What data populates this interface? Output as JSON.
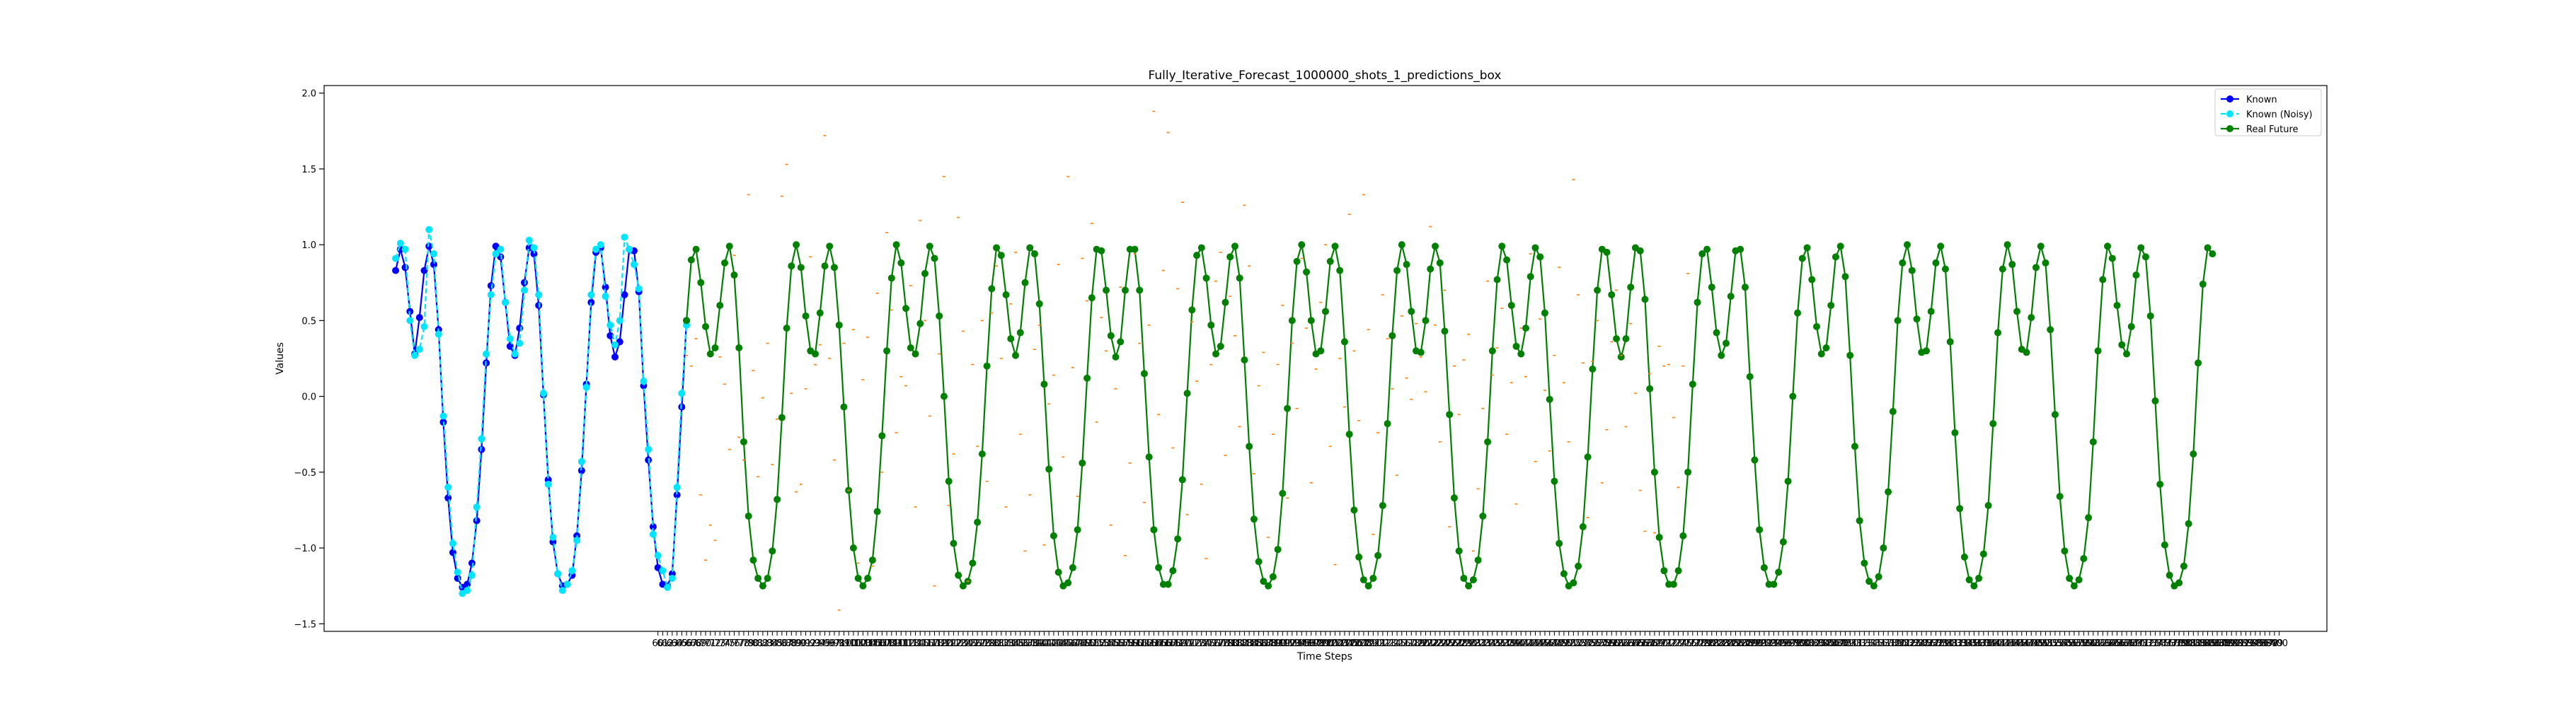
{
  "chart_data": {
    "type": "line",
    "title": "Fully_Iterative_Forecast_1000000_shots_1_predictions_box",
    "xlabel": "Time Steps",
    "ylabel": "Values",
    "xlim": [
      -10,
      410
    ],
    "ylim": [
      -1.55,
      2.05
    ],
    "yticks": [
      -1.5,
      -1.0,
      -0.5,
      0.0,
      0.5,
      1.0,
      1.5,
      2.0
    ],
    "ytick_labels": [
      "−1.5",
      "−1.0",
      "−0.5",
      "0.0",
      "0.5",
      "1.0",
      "1.5",
      "2.0"
    ],
    "x_tick_start": 60,
    "x_tick_end": 400,
    "legend_position": "top-right",
    "grid": false,
    "series": [
      {
        "name": "Known",
        "color": "#0000ff",
        "marker": "circle",
        "x_start": 5,
        "values": [
          0.83,
          0.97,
          0.85,
          0.56,
          0.28,
          0.52,
          0.83,
          0.99,
          0.87,
          0.44,
          -0.17,
          -0.67,
          -1.03,
          -1.2,
          -1.26,
          -1.24,
          -1.1,
          -0.82,
          -0.35,
          0.22,
          0.73,
          0.99,
          0.92,
          0.62,
          0.33,
          0.27,
          0.45,
          0.75,
          0.98,
          0.94,
          0.6,
          0.01,
          -0.55,
          -0.96,
          -1.17,
          -1.25,
          -1.24,
          -1.18,
          -0.92,
          -0.49,
          0.08,
          0.62,
          0.95,
          0.98,
          0.72,
          0.4,
          0.26,
          0.36,
          0.67,
          0.97,
          0.96,
          0.69,
          0.07,
          -0.42,
          -0.86,
          -1.13,
          -1.24,
          -1.25,
          -1.17,
          -0.65,
          -0.07,
          0.5
        ]
      },
      {
        "name": "Known (Noisy)",
        "color": "#00e5ff",
        "marker": "circle",
        "x_start": 5,
        "values": [
          0.91,
          1.01,
          0.97,
          0.5,
          0.27,
          0.31,
          0.46,
          1.1,
          0.94,
          0.41,
          -0.13,
          -0.6,
          -0.97,
          -1.16,
          -1.3,
          -1.28,
          -1.18,
          -0.73,
          -0.28,
          0.28,
          0.67,
          0.94,
          0.97,
          0.62,
          0.38,
          0.28,
          0.35,
          0.7,
          1.03,
          0.98,
          0.67,
          0.02,
          -0.58,
          -0.93,
          -1.17,
          -1.28,
          -1.24,
          -1.15,
          -0.95,
          -0.43,
          0.06,
          0.67,
          0.97,
          1.0,
          0.66,
          0.47,
          0.34,
          0.5,
          1.05,
          0.97,
          0.87,
          0.71,
          0.1,
          -0.35,
          -0.91,
          -1.05,
          -1.15,
          -1.26,
          -1.2,
          -0.6,
          0.02,
          0.47
        ]
      },
      {
        "name": "Real Future",
        "color": "#008000",
        "marker": "circle",
        "x_start": 66,
        "values": [
          0.5,
          0.9,
          0.97,
          0.75,
          0.46,
          0.28,
          0.32,
          0.6,
          0.88,
          0.99,
          0.8,
          0.32,
          -0.3,
          -0.79,
          -1.08,
          -1.2,
          -1.25,
          -1.2,
          -1.02,
          -0.68,
          -0.14,
          0.45,
          0.86,
          1.0,
          0.85,
          0.53,
          0.3,
          0.28,
          0.55,
          0.86,
          0.99,
          0.85,
          0.47,
          -0.07,
          -0.62,
          -1.0,
          -1.2,
          -1.25,
          -1.2,
          -1.08,
          -0.76,
          -0.26,
          0.3,
          0.78,
          1.0,
          0.88,
          0.58,
          0.32,
          0.28,
          0.48,
          0.81,
          0.99,
          0.91,
          0.53,
          0.0,
          -0.56,
          -0.97,
          -1.18,
          -1.25,
          -1.22,
          -1.1,
          -0.83,
          -0.38,
          0.2,
          0.71,
          0.98,
          0.93,
          0.67,
          0.38,
          0.27,
          0.42,
          0.75,
          0.98,
          0.94,
          0.61,
          0.08,
          -0.48,
          -0.92,
          -1.16,
          -1.25,
          -1.23,
          -1.13,
          -0.88,
          -0.44,
          0.12,
          0.65,
          0.97,
          0.96,
          0.7,
          0.4,
          0.26,
          0.36,
          0.7,
          0.97,
          0.97,
          0.7,
          0.15,
          -0.4,
          -0.88,
          -1.13,
          -1.24,
          -1.24,
          -1.15,
          -0.94,
          -0.55,
          0.02,
          0.57,
          0.93,
          0.98,
          0.78,
          0.47,
          0.28,
          0.33,
          0.62,
          0.92,
          0.99,
          0.78,
          0.24,
          -0.33,
          -0.81,
          -1.09,
          -1.22,
          -1.25,
          -1.19,
          -1.01,
          -0.64,
          -0.08,
          0.5,
          0.89,
          1.0,
          0.82,
          0.5,
          0.28,
          0.3,
          0.56,
          0.89,
          0.99,
          0.83,
          0.36,
          -0.25,
          -0.75,
          -1.06,
          -1.21,
          -1.25,
          -1.2,
          -1.05,
          -0.72,
          -0.18,
          0.4,
          0.83,
          1.0,
          0.87,
          0.56,
          0.3,
          0.29,
          0.5,
          0.84,
          0.99,
          0.88,
          0.43,
          -0.12,
          -0.67,
          -1.02,
          -1.2,
          -1.25,
          -1.21,
          -1.08,
          -0.79,
          -0.3,
          0.3,
          0.77,
          0.99,
          0.9,
          0.6,
          0.33,
          0.28,
          0.45,
          0.79,
          0.98,
          0.92,
          0.55,
          -0.02,
          -0.56,
          -0.97,
          -1.17,
          -1.25,
          -1.23,
          -1.12,
          -0.86,
          -0.4,
          0.18,
          0.7,
          0.97,
          0.95,
          0.67,
          0.38,
          0.26,
          0.38,
          0.72,
          0.98,
          0.96,
          0.64,
          0.05,
          -0.5,
          -0.93,
          -1.15,
          -1.24,
          -1.24,
          -1.15,
          -0.92,
          -0.5,
          0.08,
          0.62,
          0.94,
          0.97,
          0.72,
          0.42,
          0.27,
          0.35,
          0.66,
          0.96,
          0.97,
          0.72,
          0.13,
          -0.42,
          -0.88,
          -1.13,
          -1.24,
          -1.24,
          -1.16,
          -0.96,
          -0.56,
          0.0,
          0.55,
          0.91,
          0.98,
          0.77,
          0.46,
          0.28,
          0.32,
          0.6,
          0.92,
          0.99,
          0.79,
          0.27,
          -0.33,
          -0.82,
          -1.1,
          -1.22,
          -1.25,
          -1.19,
          -1.0,
          -0.63,
          -0.1,
          0.5,
          0.88,
          1.0,
          0.83,
          0.51,
          0.29,
          0.3,
          0.56,
          0.88,
          0.99,
          0.84,
          0.36,
          -0.24,
          -0.74,
          -1.06,
          -1.21,
          -1.25,
          -1.2,
          -1.04,
          -0.72,
          -0.18,
          0.42,
          0.84,
          1.0,
          0.87,
          0.56,
          0.31,
          0.29,
          0.52,
          0.85,
          0.99,
          0.88,
          0.44,
          -0.12,
          -0.66,
          -1.02,
          -1.2,
          -1.25,
          -1.21,
          -1.07,
          -0.8,
          -0.3,
          0.3,
          0.77,
          0.99,
          0.91,
          0.6,
          0.34,
          0.28,
          0.46,
          0.8,
          0.98,
          0.92,
          0.53,
          -0.03,
          -0.58,
          -0.98,
          -1.18,
          -1.25,
          -1.23,
          -1.12,
          -0.84,
          -0.38,
          0.22,
          0.74,
          0.98,
          0.94
        ]
      },
      {
        "name": "",
        "color": "#ff7f0e",
        "marker": "dash",
        "x_start": 66,
        "type": "scatter",
        "values": [
          0.27,
          0.2,
          0.38,
          -0.65,
          -1.08,
          -0.85,
          -0.95,
          0.26,
          0.08,
          -0.35,
          0.93,
          -0.27,
          -0.42,
          1.33,
          0.17,
          -0.53,
          -0.01,
          0.35,
          -0.45,
          -0.15,
          1.32,
          1.53,
          0.02,
          -0.63,
          -0.58,
          0.05,
          0.92,
          0.21,
          0.34,
          1.72,
          0.25,
          -0.42,
          -1.41,
          0.35,
          -0.62,
          0.44,
          -1.1,
          0.11,
          0.39,
          -1.12,
          0.68,
          -0.5,
          1.08,
          0.57,
          -0.24,
          0.13,
          0.07,
          0.73,
          -0.73,
          1.16,
          0.5,
          -0.13,
          -1.25,
          0.28,
          1.45,
          -0.72,
          -0.38,
          1.18,
          0.43,
          -1.22,
          0.21,
          -0.33,
          0.5,
          -0.56,
          0.55,
          0.86,
          0.25,
          -0.73,
          0.61,
          0.95,
          -0.25,
          -1.02,
          -0.65,
          0.31,
          0.47,
          -0.98,
          -0.05,
          0.14,
          0.87,
          -0.4,
          1.45,
          0.19,
          -0.66,
          0.91,
          0.63,
          1.14,
          -0.17,
          0.52,
          0.3,
          -0.85,
          0.05,
          0.72,
          -1.05,
          -0.44,
          0.94,
          0.35,
          -0.7,
          0.47,
          1.88,
          -0.12,
          0.83,
          1.74,
          -0.34,
          0.71,
          1.28,
          -0.78,
          0.49,
          0.1,
          -0.58,
          -1.07,
          0.21,
          0.76,
          0.95,
          -0.39,
          0.66,
          0.4,
          -0.2,
          1.26,
          0.86,
          -0.51,
          0.07,
          0.29,
          -0.93,
          -0.25,
          0.21,
          0.6,
          -0.67,
          0.35,
          -0.08,
          0.91,
          0.45,
          -0.57,
          0.18,
          0.62,
          1.0,
          -0.33,
          -1.11,
          0.25,
          -0.07,
          1.2,
          0.3,
          -0.16,
          1.33,
          0.44,
          -0.91,
          -0.24,
          0.67,
          0.38,
          0.05,
          -0.52,
          0.53,
          0.12,
          -0.02,
          0.48,
          0.26,
          0.03,
          1.12,
          0.47,
          -0.3,
          0.7,
          -0.86,
          0.2,
          -0.12,
          0.24,
          0.41,
          -1.02,
          -0.61,
          -0.08,
          0.76,
          0.14,
          0.32,
          0.58,
          -0.25,
          0.09,
          -0.71,
          0.45,
          0.13,
          0.94,
          -0.43,
          0.51,
          0.04,
          -0.36,
          0.27,
          0.85,
          0.09,
          -0.3,
          1.43,
          0.67,
          0.22,
          -0.8,
          0.23,
          0.5,
          -0.57,
          -0.22,
          0.36,
          0.7,
          0.27,
          -0.2,
          0.48,
          0.02,
          -0.62,
          -0.89,
          0.15,
          -0.9,
          0.33,
          0.2,
          0.21,
          -0.14,
          -0.6,
          0.2,
          0.81
        ]
      }
    ]
  }
}
